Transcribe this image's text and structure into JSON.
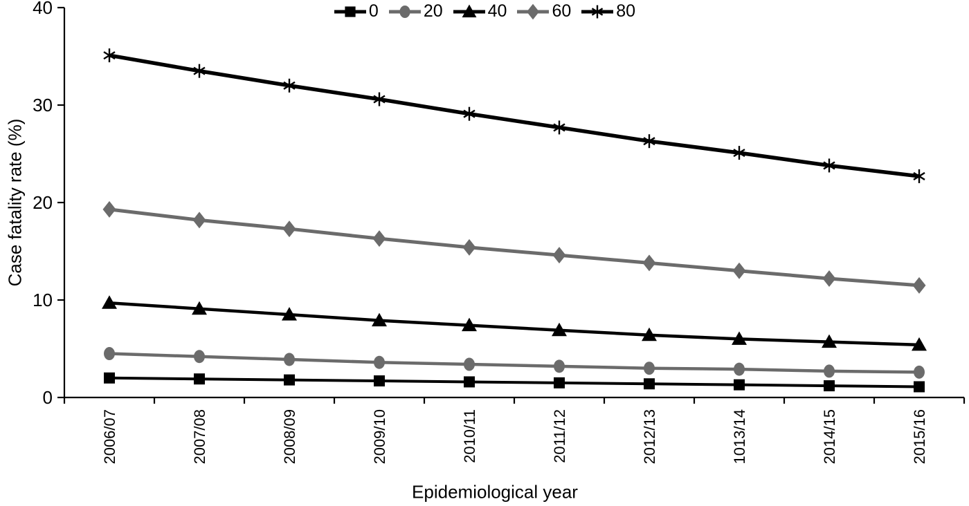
{
  "chart_data": {
    "type": "line",
    "title": "",
    "xlabel": "Epidemiological year",
    "ylabel": "Case fatality rate (%)",
    "categories": [
      "2006/07",
      "2007/08",
      "2008/09",
      "2009/10",
      "2010/11",
      "2011/12",
      "2012/13",
      "1013/14",
      "2014/15",
      "2015/16"
    ],
    "ylim": [
      0,
      40
    ],
    "yticks": [
      0,
      10,
      20,
      30,
      40
    ],
    "grid": false,
    "legend_position": "top-center",
    "colors": {
      "black_series": "#000000",
      "gray_series": "#6b6b6b"
    },
    "series": [
      {
        "name": "0",
        "marker": "square-icon",
        "color": "#000000",
        "line_width": 4,
        "values": [
          2.0,
          1.9,
          1.8,
          1.7,
          1.6,
          1.5,
          1.4,
          1.3,
          1.2,
          1.1
        ]
      },
      {
        "name": "20",
        "marker": "circle-icon",
        "color": "#6b6b6b",
        "line_width": 4.5,
        "values": [
          4.5,
          4.2,
          3.9,
          3.6,
          3.4,
          3.2,
          3.0,
          2.9,
          2.7,
          2.6
        ]
      },
      {
        "name": "40",
        "marker": "triangle-icon",
        "color": "#000000",
        "line_width": 4.5,
        "values": [
          9.7,
          9.1,
          8.5,
          7.9,
          7.4,
          6.9,
          6.4,
          6.0,
          5.7,
          5.4
        ]
      },
      {
        "name": "60",
        "marker": "diamond-icon",
        "color": "#6b6b6b",
        "line_width": 5,
        "values": [
          19.3,
          18.2,
          17.3,
          16.3,
          15.4,
          14.6,
          13.8,
          13.0,
          12.2,
          11.5
        ]
      },
      {
        "name": "80",
        "marker": "asterisk-icon",
        "color": "#000000",
        "line_width": 5.5,
        "values": [
          35.1,
          33.5,
          32.0,
          30.6,
          29.1,
          27.7,
          26.3,
          25.1,
          23.8,
          22.7
        ]
      }
    ]
  }
}
